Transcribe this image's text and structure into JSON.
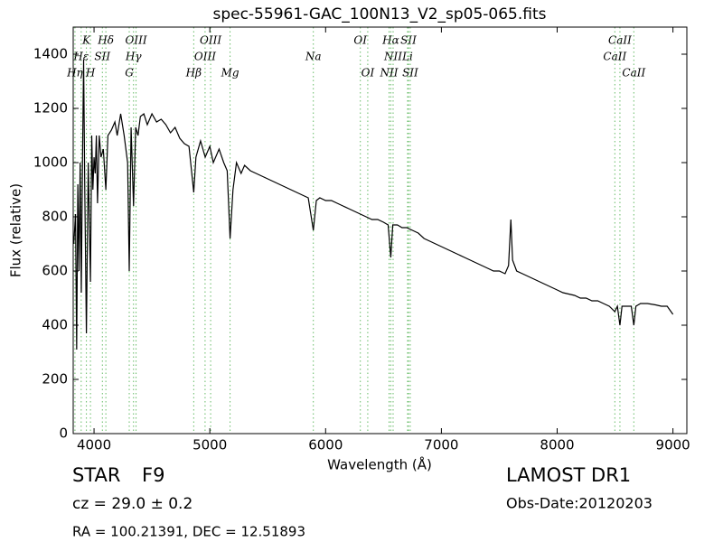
{
  "chart_data": {
    "type": "line",
    "title": "spec-55961-GAC_100N13_V2_sp05-065.fits",
    "x_label": "Wavelength (Å)",
    "y_label": "Flux (relative)",
    "color": "#000000",
    "line_marker_color": "#66bb66",
    "xlim": [
      3820,
      9120
    ],
    "xticks": [
      4000,
      5000,
      6000,
      7000,
      8000,
      9000
    ],
    "ylim": [
      0,
      1500
    ],
    "yticks": [
      0,
      200,
      400,
      600,
      800,
      1000,
      1200,
      1400
    ],
    "x": [
      3825,
      3840,
      3850,
      3860,
      3870,
      3880,
      3890,
      3900,
      3910,
      3920,
      3934,
      3950,
      3969,
      3980,
      3990,
      4000,
      4010,
      4020,
      4030,
      4045,
      4060,
      4080,
      4102,
      4120,
      4150,
      4180,
      4200,
      4230,
      4260,
      4290,
      4304,
      4320,
      4341,
      4360,
      4380,
      4400,
      4430,
      4460,
      4500,
      4540,
      4580,
      4620,
      4660,
      4700,
      4740,
      4780,
      4820,
      4861,
      4880,
      4920,
      4960,
      5000,
      5030,
      5080,
      5120,
      5150,
      5175,
      5200,
      5230,
      5270,
      5300,
      5350,
      5400,
      5450,
      5500,
      5550,
      5600,
      5650,
      5700,
      5750,
      5800,
      5850,
      5894,
      5920,
      5950,
      6000,
      6050,
      6100,
      6150,
      6200,
      6250,
      6300,
      6350,
      6400,
      6450,
      6500,
      6540,
      6563,
      6580,
      6620,
      6660,
      6700,
      6750,
      6800,
      6850,
      6900,
      6950,
      7000,
      7050,
      7100,
      7150,
      7200,
      7250,
      7300,
      7350,
      7400,
      7450,
      7500,
      7550,
      7580,
      7600,
      7615,
      7650,
      7700,
      7750,
      7800,
      7850,
      7900,
      7950,
      8000,
      8050,
      8100,
      8150,
      8200,
      8250,
      8300,
      8350,
      8400,
      8450,
      8498,
      8520,
      8542,
      8560,
      8600,
      8640,
      8662,
      8680,
      8720,
      8780,
      8850,
      8900,
      8950,
      9000
    ],
    "values": [
      700,
      810,
      310,
      920,
      600,
      1000,
      520,
      1000,
      1380,
      900,
      370,
      1000,
      560,
      1100,
      900,
      1020,
      960,
      1100,
      850,
      1100,
      1020,
      1050,
      900,
      1100,
      1120,
      1150,
      1100,
      1180,
      1100,
      1000,
      600,
      1130,
      840,
      1130,
      1100,
      1170,
      1180,
      1140,
      1180,
      1150,
      1160,
      1140,
      1110,
      1130,
      1090,
      1070,
      1060,
      890,
      1020,
      1080,
      1020,
      1060,
      1000,
      1050,
      1000,
      970,
      720,
      900,
      1000,
      960,
      990,
      970,
      960,
      950,
      940,
      930,
      920,
      910,
      900,
      890,
      880,
      870,
      750,
      860,
      870,
      860,
      860,
      850,
      840,
      830,
      820,
      810,
      800,
      790,
      790,
      780,
      770,
      650,
      770,
      770,
      760,
      760,
      750,
      740,
      720,
      710,
      700,
      690,
      680,
      670,
      660,
      650,
      640,
      630,
      620,
      610,
      600,
      600,
      590,
      620,
      790,
      640,
      600,
      590,
      580,
      570,
      560,
      550,
      540,
      530,
      520,
      515,
      510,
      500,
      500,
      490,
      490,
      480,
      470,
      450,
      470,
      400,
      470,
      470,
      470,
      400,
      470,
      480,
      480,
      475,
      470,
      470,
      440
    ],
    "spectral_lines": [
      {
        "label": "K",
        "wavelength": 3934
      },
      {
        "label": "Hδ",
        "wavelength": 4102
      },
      {
        "label": "OIII",
        "wavelength": 4363
      },
      {
        "label": "OIII",
        "wavelength": 5007
      },
      {
        "label": "OI",
        "wavelength": 6300
      },
      {
        "label": "Hα",
        "wavelength": 6563
      },
      {
        "label": "SII",
        "wavelength": 6716
      },
      {
        "label": "CaII",
        "wavelength": 8542
      },
      {
        "label": "Hε",
        "wavelength": 3889
      },
      {
        "label": "SII",
        "wavelength": 4072
      },
      {
        "label": "Hγ",
        "wavelength": 4341
      },
      {
        "label": "OIII",
        "wavelength": 4959
      },
      {
        "label": "Na",
        "wavelength": 5894
      },
      {
        "label": "NII",
        "wavelength": 6583
      },
      {
        "label": "Li",
        "wavelength": 6708
      },
      {
        "label": "CaII",
        "wavelength": 8498
      },
      {
        "label": "Hη",
        "wavelength": 3835
      },
      {
        "label": "H",
        "wavelength": 3969
      },
      {
        "label": "G",
        "wavelength": 4304
      },
      {
        "label": "Hβ",
        "wavelength": 4861
      },
      {
        "label": "Mg",
        "wavelength": 5175
      },
      {
        "label": "OI",
        "wavelength": 6364
      },
      {
        "label": "NII",
        "wavelength": 6548
      },
      {
        "label": "SII",
        "wavelength": 6731
      },
      {
        "label": "CaII",
        "wavelength": 8662
      }
    ],
    "info": {
      "object_class": "STAR",
      "subclass": "F9",
      "survey": "LAMOST DR1",
      "redshift": "cz = 29.0 ± 0.2",
      "obs_date": "Obs-Date:20120203",
      "coords": "RA = 100.21391, DEC = 12.51893"
    }
  }
}
